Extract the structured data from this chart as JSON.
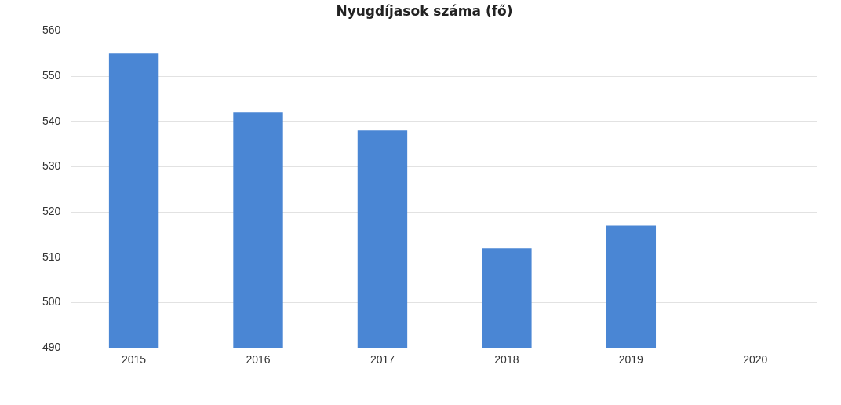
{
  "chart_data": {
    "type": "bar",
    "title": "Nyugdíjasok száma (fő)",
    "categories": [
      "2015",
      "2016",
      "2017",
      "2018",
      "2019",
      "2020"
    ],
    "values": [
      555,
      542,
      538,
      512,
      517,
      null
    ],
    "color": "#4a86d4",
    "ylim": [
      490,
      560
    ],
    "yticks": [
      490,
      500,
      510,
      520,
      530,
      540,
      550,
      560
    ],
    "grid": "y",
    "legend": false
  }
}
